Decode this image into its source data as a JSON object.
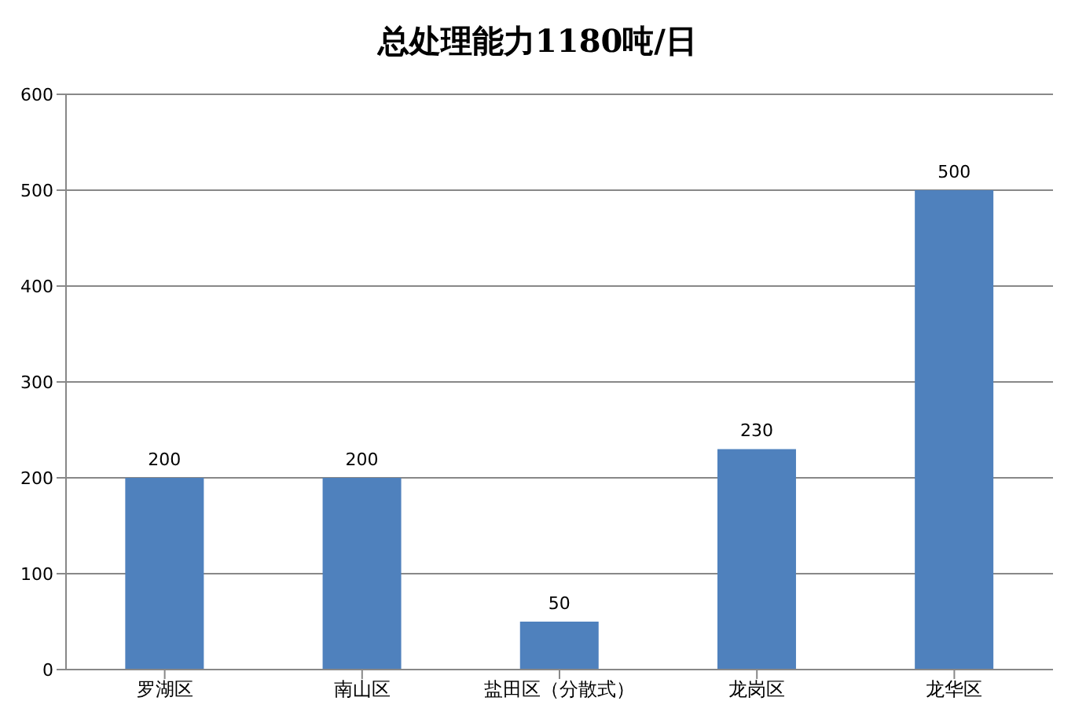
{
  "chart_data": {
    "type": "bar",
    "title": "总处理能力1180吨/日",
    "categories": [
      "罗湖区",
      "南山区",
      "盐田区（分散式）",
      "龙岗区",
      "龙华区"
    ],
    "values": [
      200,
      200,
      50,
      230,
      500
    ],
    "color": "#4f81bd",
    "ylim": [
      0,
      600
    ],
    "yticks": [
      0,
      100,
      200,
      300,
      400,
      500,
      600
    ],
    "grid": "y",
    "data_labels": true
  }
}
